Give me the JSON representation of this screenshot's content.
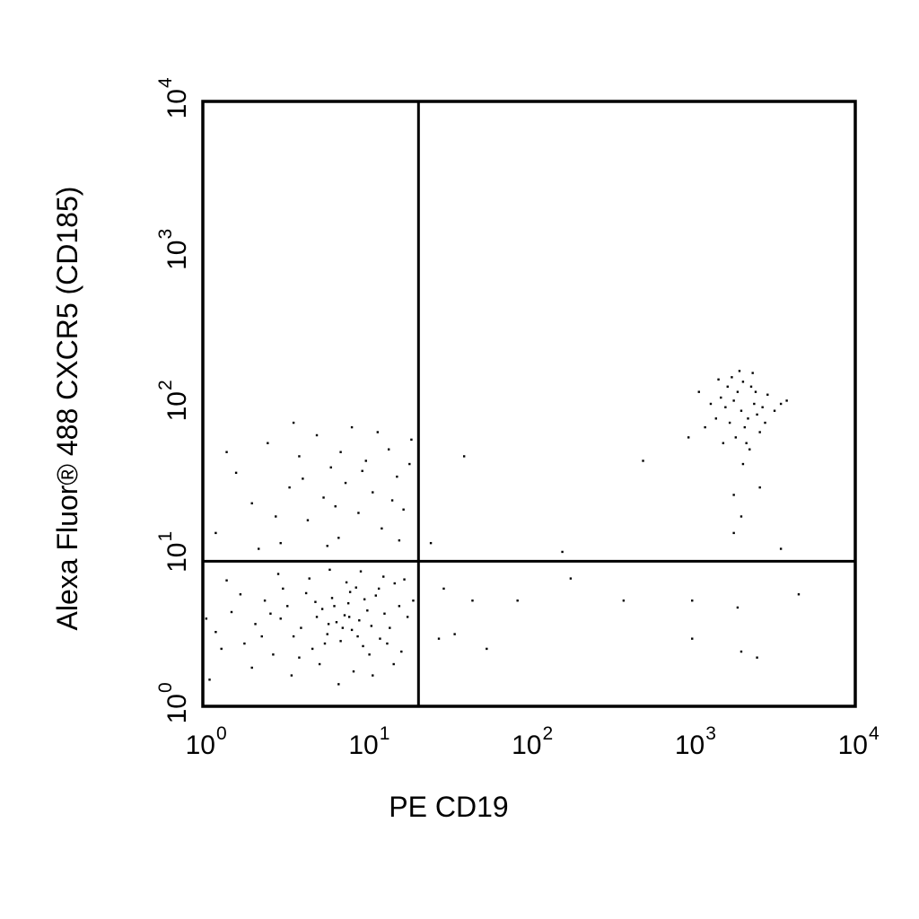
{
  "chart_data": {
    "type": "scatter",
    "x_label": "PE CD19",
    "y_label": "Alexa Fluor® 488 CXCR5 (CD185)",
    "log_x": true,
    "log_y": true,
    "xlim": [
      1,
      10000
    ],
    "ylim": [
      1,
      10000
    ],
    "xticks": [
      {
        "value": 1,
        "label": "10",
        "sup": "0"
      },
      {
        "value": 10,
        "label": "10",
        "sup": "1"
      },
      {
        "value": 100,
        "label": "10",
        "sup": "2"
      },
      {
        "value": 1000,
        "label": "10",
        "sup": "3"
      },
      {
        "value": 10000,
        "label": "10",
        "sup": "4"
      }
    ],
    "yticks": [
      {
        "value": 1,
        "label": "10",
        "sup": "0"
      },
      {
        "value": 10,
        "label": "10",
        "sup": "1"
      },
      {
        "value": 100,
        "label": "10",
        "sup": "2"
      },
      {
        "value": 1000,
        "label": "10",
        "sup": "3"
      },
      {
        "value": 10000,
        "label": "10",
        "sup": "4"
      }
    ],
    "quadrant_gates": {
      "x": 21,
      "y": 9.1
    },
    "color": "#000000",
    "x": [
      1.2,
      1.5,
      1.8,
      2.1,
      2.4,
      2.7,
      3.0,
      3.3,
      3.6,
      4.0,
      4.3,
      4.7,
      5.0,
      5.4,
      5.8,
      6.2,
      6.6,
      7.0,
      7.4,
      7.8,
      8.2,
      8.7,
      9.1,
      9.6,
      10.2,
      10.8,
      11.5,
      12.2,
      13.0,
      14.0,
      15.0,
      16.5,
      18.0,
      19.5,
      1.1,
      1.4,
      2.0,
      2.9,
      3.5,
      4.5,
      5.2,
      6.0,
      6.8,
      7.6,
      8.4,
      9.3,
      11.0,
      12.8,
      14.8,
      17.2,
      1.3,
      1.7,
      2.3,
      3.1,
      3.9,
      4.9,
      5.6,
      6.4,
      7.2,
      8.0,
      8.9,
      9.8,
      10.5,
      12.0,
      13.5,
      16.0,
      1.05,
      2.6,
      5.9,
      7.9,
      1.2,
      1.6,
      2.0,
      2.5,
      3.0,
      3.4,
      3.9,
      4.4,
      5.0,
      5.5,
      6.1,
      6.8,
      7.5,
      8.2,
      9.0,
      10.0,
      11.0,
      12.5,
      13.8,
      15.5,
      17.0,
      19.0,
      1.4,
      2.2,
      2.8,
      4.1,
      5.8,
      7.0,
      9.5,
      11.8,
      14.5,
      18.5,
      3.6,
      6.5,
      16.0,
      2000,
      1800,
      2200,
      1700,
      2400,
      1900,
      2100,
      1600,
      2500,
      1500,
      2300,
      1850,
      2050,
      2700,
      1400,
      2900,
      1300,
      2600,
      1750,
      2150,
      3200,
      1200,
      1950,
      2450,
      1650,
      2800,
      1100,
      3500,
      2250,
      1550,
      950,
      3800,
      2350,
      1450,
      2050,
      40,
      500,
      25,
      160,
      1800,
      2000,
      2600,
      3500,
      30,
      45,
      85,
      180,
      380,
      1000,
      1900,
      4500,
      1000,
      2000,
      2500,
      35,
      55,
      28,
      1800
    ],
    "values": [
      3.1,
      4.2,
      2.6,
      3.5,
      5.0,
      2.2,
      3.8,
      4.6,
      2.9,
      3.3,
      5.6,
      2.4,
      3.9,
      4.4,
      3.0,
      5.2,
      3.6,
      2.7,
      4.0,
      4.8,
      3.2,
      6.1,
      3.7,
      2.5,
      4.3,
      3.4,
      5.4,
      2.8,
      4.1,
      3.3,
      6.5,
      2.3,
      3.9,
      5.0,
      1.5,
      6.8,
      1.8,
      7.5,
      1.6,
      7.0,
      1.9,
      8.0,
      1.4,
      6.6,
      1.7,
      7.8,
      1.6,
      7.2,
      1.9,
      6.9,
      2.4,
      5.5,
      2.9,
      6.0,
      2.1,
      4.9,
      2.6,
      4.6,
      3.3,
      5.7,
      2.9,
      5.1,
      2.2,
      6.0,
      2.6,
      4.6,
      3.8,
      4.1,
      3.5,
      3.9,
      14,
      35,
      22,
      55,
      12,
      28,
      45,
      17,
      62,
      24,
      38,
      13,
      30,
      70,
      19,
      42,
      26,
      15,
      50,
      33,
      20,
      58,
      48,
      11,
      18,
      32,
      11.5,
      48,
      36,
      65,
      23,
      40,
      75,
      21,
      12.5,
      90,
      105,
      80,
      75,
      100,
      120,
      70,
      95,
      85,
      110,
      130,
      60,
      140,
      95,
      80,
      115,
      100,
      65,
      150,
      55,
      90,
      70,
      165,
      120,
      130,
      75,
      120,
      100,
      50,
      55,
      60,
      105,
      160,
      145,
      40,
      45,
      42,
      12,
      10.5,
      25,
      18,
      28,
      11,
      6,
      5,
      5,
      7,
      5,
      5,
      4.5,
      5.5,
      2.8,
      2.3,
      2.1,
      3.0,
      2.4,
      2.8,
      14
    ]
  }
}
